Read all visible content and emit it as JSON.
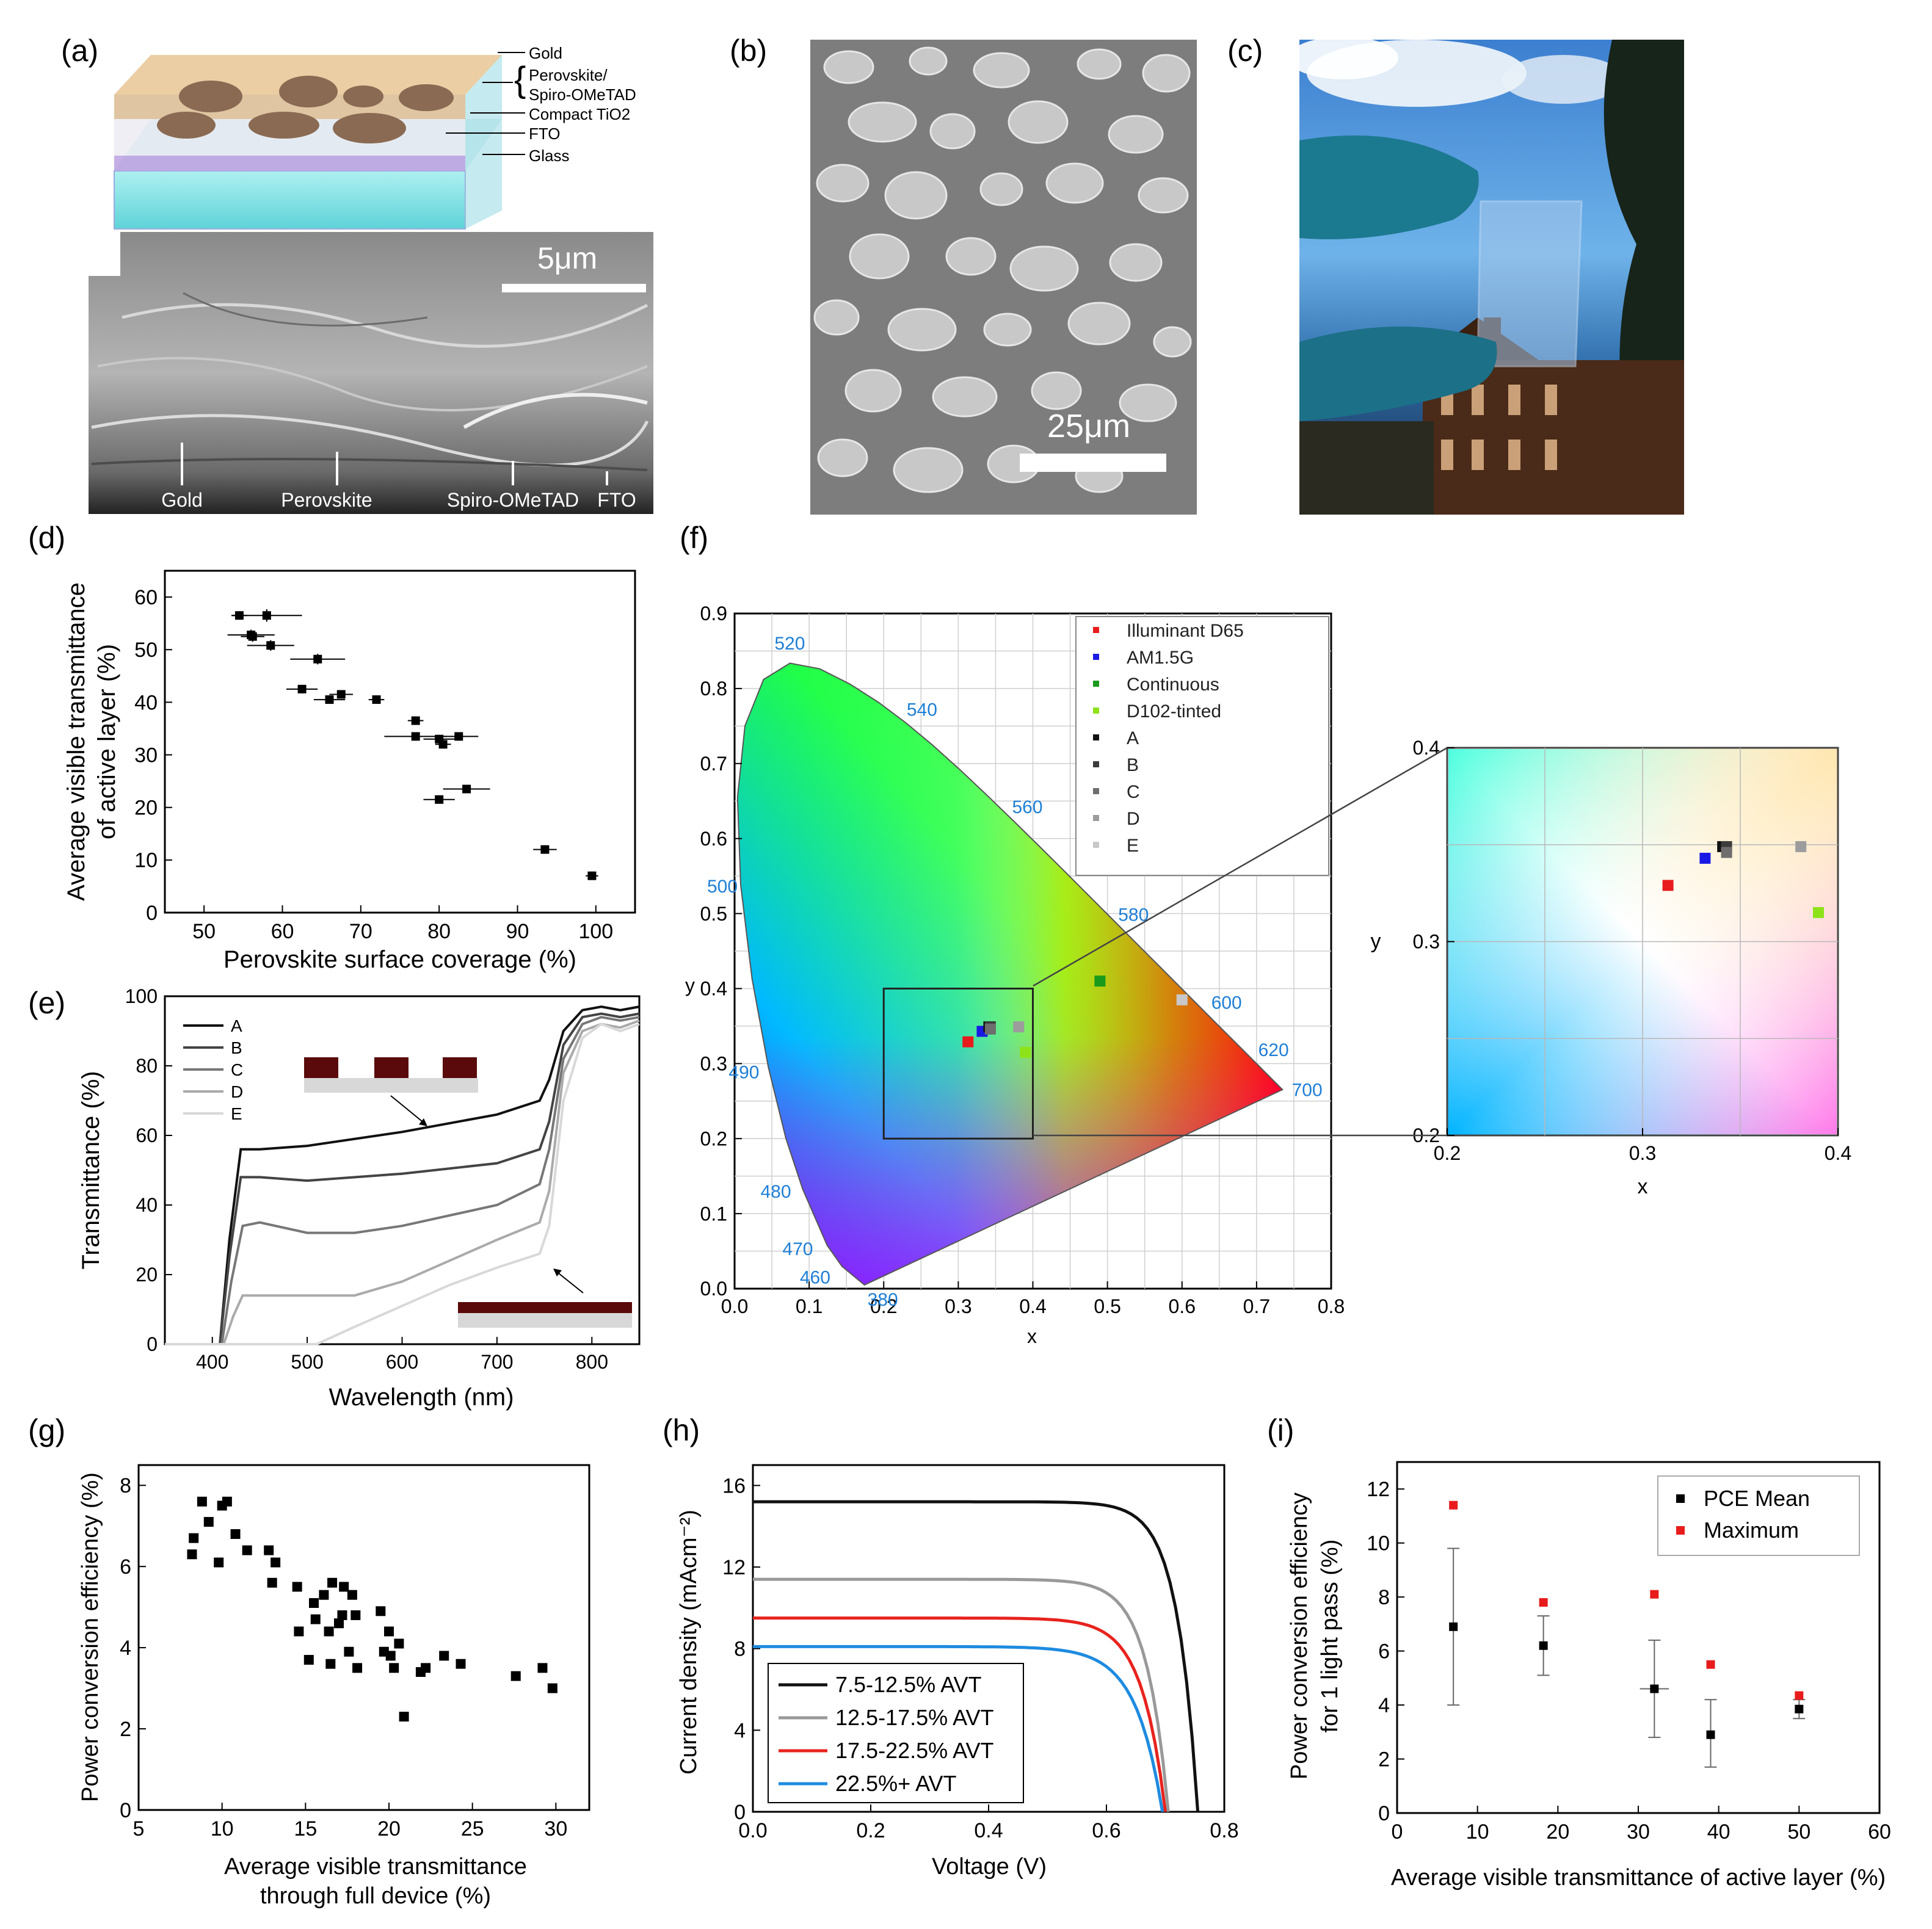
{
  "panels": {
    "a": {
      "label": "(a)",
      "layers": [
        "Gold",
        "Perovskite/",
        "Spiro-OMeTAD",
        "Compact TiO2",
        "FTO",
        "Glass"
      ],
      "scale_bar": "5μm",
      "sem_labels": [
        "Gold",
        "Perovskite",
        "Spiro-OMeTAD",
        "FTO"
      ]
    },
    "b": {
      "label": "(b)",
      "scale_bar": "25μm"
    },
    "c": {
      "label": "(c)"
    },
    "d": {
      "label": "(d)"
    },
    "e": {
      "label": "(e)"
    },
    "f": {
      "label": "(f)",
      "wavelength_labels": [
        "520",
        "540",
        "560",
        "580",
        "600",
        "620",
        "700",
        "500",
        "490",
        "480",
        "470",
        "460",
        "380"
      ]
    },
    "g": {
      "label": "(g)"
    },
    "h": {
      "label": "(h)"
    },
    "i": {
      "label": "(i)"
    }
  },
  "colors": {
    "red": "#e81c1c",
    "blue": "#1a1ae6",
    "green": "#1a9a1a",
    "lime": "#8ee21a",
    "gray_a": "#111111",
    "gray_b": "#3c3c3c",
    "gray_c": "#6e6e6e",
    "gray_d": "#9c9c9c",
    "gray_e": "#c8c8c8",
    "wavelength_text": "#1e7fd6",
    "maroon": "#5a0a0a"
  },
  "chart_data": [
    {
      "id": "d",
      "type": "scatter",
      "xlabel": "Perovskite surface coverage (%)",
      "ylabel": [
        "Average visible transmittance",
        "of active layer (%)"
      ],
      "xlim": [
        45,
        105
      ],
      "ylim": [
        0,
        65
      ],
      "xticks": [
        50,
        60,
        70,
        80,
        90,
        100
      ],
      "xtick_labels": [
        "50",
        "60",
        "70",
        "80",
        "90",
        "100"
      ],
      "yticks": [
        0,
        10,
        20,
        30,
        40,
        50,
        60
      ],
      "ytick_labels": [
        "0",
        "10",
        "20",
        "30",
        "40",
        "50",
        "60"
      ],
      "points": [
        {
          "x": 54.5,
          "y": 56.5,
          "xerr": 1.0,
          "yerr": 0.8
        },
        {
          "x": 58.0,
          "y": 56.5,
          "xerr": 4.5,
          "yerr": 1.2
        },
        {
          "x": 56.0,
          "y": 52.8,
          "xerr": 3.0,
          "yerr": 1.0
        },
        {
          "x": 56.2,
          "y": 52.5,
          "xerr": 1.5,
          "yerr": 1.0
        },
        {
          "x": 58.5,
          "y": 50.8,
          "xerr": 3.0,
          "yerr": 1.0
        },
        {
          "x": 64.5,
          "y": 48.2,
          "xerr": 3.5,
          "yerr": 1.0
        },
        {
          "x": 62.5,
          "y": 42.5,
          "xerr": 2.0,
          "yerr": 0.8
        },
        {
          "x": 66.0,
          "y": 40.5,
          "xerr": 2.0,
          "yerr": 0.8
        },
        {
          "x": 67.5,
          "y": 41.5,
          "xerr": 1.5,
          "yerr": 0.8
        },
        {
          "x": 72.0,
          "y": 40.5,
          "xerr": 1.0,
          "yerr": 0.8
        },
        {
          "x": 77.0,
          "y": 36.5,
          "xerr": 1.0,
          "yerr": 0.8
        },
        {
          "x": 77.0,
          "y": 33.5,
          "xerr": 4.0,
          "yerr": 0.8
        },
        {
          "x": 80.0,
          "y": 33.0,
          "xerr": 2.0,
          "yerr": 0.8
        },
        {
          "x": 80.5,
          "y": 32.0,
          "xerr": 1.0,
          "yerr": 0.8
        },
        {
          "x": 82.5,
          "y": 33.5,
          "xerr": 2.5,
          "yerr": 0.8
        },
        {
          "x": 83.5,
          "y": 23.5,
          "xerr": 3.0,
          "yerr": 0.8
        },
        {
          "x": 80.0,
          "y": 21.5,
          "xerr": 2.0,
          "yerr": 0.8
        },
        {
          "x": 93.5,
          "y": 12.0,
          "xerr": 1.5,
          "yerr": 0.8
        },
        {
          "x": 99.5,
          "y": 7.0,
          "xerr": 0.8,
          "yerr": 0.8
        }
      ]
    },
    {
      "id": "e",
      "type": "line",
      "xlabel": "Wavelength (nm)",
      "ylabel": "Transmittance (%)",
      "xlim": [
        350,
        850
      ],
      "ylim": [
        0,
        100
      ],
      "xticks": [
        400,
        500,
        600,
        700,
        800
      ],
      "xtick_labels": [
        "400",
        "500",
        "600",
        "700",
        "800"
      ],
      "yticks": [
        0,
        20,
        40,
        60,
        80,
        100
      ],
      "ytick_labels": [
        "0",
        "20",
        "40",
        "60",
        "80",
        "100"
      ],
      "series": [
        {
          "name": "A",
          "color": "#111111",
          "x": [
            350,
            408,
            418,
            430,
            450,
            500,
            600,
            700,
            745,
            755,
            770,
            790,
            810,
            830,
            850
          ],
          "y": [
            0,
            0,
            30,
            56,
            56,
            57,
            61,
            66,
            70,
            76,
            90,
            96,
            97,
            96,
            97
          ]
        },
        {
          "name": "B",
          "color": "#444444",
          "x": [
            350,
            408,
            418,
            430,
            450,
            500,
            600,
            700,
            745,
            755,
            770,
            790,
            810,
            830,
            850
          ],
          "y": [
            0,
            0,
            25,
            48,
            48,
            47,
            49,
            52,
            56,
            64,
            86,
            94,
            95,
            94,
            95
          ]
        },
        {
          "name": "C",
          "color": "#777777",
          "x": [
            350,
            410,
            420,
            432,
            450,
            500,
            550,
            600,
            700,
            745,
            755,
            770,
            790,
            810,
            830,
            850
          ],
          "y": [
            0,
            0,
            18,
            34,
            35,
            32,
            32,
            34,
            40,
            46,
            56,
            82,
            92,
            94,
            93,
            94
          ]
        },
        {
          "name": "D",
          "color": "#aaaaaa",
          "x": [
            350,
            412,
            422,
            432,
            450,
            500,
            550,
            600,
            650,
            700,
            745,
            755,
            770,
            790,
            810,
            830,
            850
          ],
          "y": [
            0,
            0,
            8,
            14,
            14,
            14,
            14,
            18,
            24,
            30,
            35,
            44,
            78,
            90,
            92,
            91,
            93
          ]
        },
        {
          "name": "E",
          "color": "#d8d8d8",
          "x": [
            350,
            510,
            550,
            600,
            650,
            700,
            745,
            755,
            770,
            790,
            810,
            830,
            850
          ],
          "y": [
            0,
            0,
            5,
            11,
            17,
            22,
            26,
            34,
            70,
            88,
            92,
            90,
            92
          ]
        }
      ]
    },
    {
      "id": "f",
      "type": "scatter",
      "xlabel": "x",
      "ylabel": "y",
      "xlim": [
        0,
        0.8
      ],
      "ylim": [
        0,
        0.9
      ],
      "xticks": [
        0.0,
        0.1,
        0.2,
        0.3,
        0.4,
        0.5,
        0.6,
        0.7,
        0.8
      ],
      "xtick_labels": [
        "0.0",
        "0.1",
        "0.2",
        "0.3",
        "0.4",
        "0.5",
        "0.6",
        "0.7",
        "0.8"
      ],
      "yticks": [
        0.0,
        0.1,
        0.2,
        0.3,
        0.4,
        0.5,
        0.6,
        0.7,
        0.8,
        0.9
      ],
      "ytick_labels": [
        "0.0",
        "0.1",
        "0.2",
        "0.3",
        "0.4",
        "0.5",
        "0.6",
        "0.7",
        "0.8",
        "0.9"
      ],
      "series": [
        {
          "name": "Illuminant D65",
          "color": "#e81c1c",
          "x": 0.313,
          "y": 0.329
        },
        {
          "name": "AM1.5G",
          "color": "#1a1ae6",
          "x": 0.332,
          "y": 0.343
        },
        {
          "name": "Continuous",
          "color": "#1a9a1a",
          "x": 0.49,
          "y": 0.41
        },
        {
          "name": "D102-tinted",
          "color": "#8ee21a",
          "x": 0.39,
          "y": 0.315
        },
        {
          "name": "A",
          "color": "#111111",
          "x": 0.341,
          "y": 0.349
        },
        {
          "name": "B",
          "color": "#3c3c3c",
          "x": 0.343,
          "y": 0.349
        },
        {
          "name": "C",
          "color": "#6e6e6e",
          "x": 0.343,
          "y": 0.346
        },
        {
          "name": "D",
          "color": "#9c9c9c",
          "x": 0.381,
          "y": 0.349
        },
        {
          "name": "E",
          "color": "#c8c8c8",
          "x": 0.6,
          "y": 0.385
        }
      ],
      "inset": {
        "xlabel": "x",
        "ylabel": "y",
        "xlim": [
          0.2,
          0.4
        ],
        "ylim": [
          0.2,
          0.4
        ],
        "xticks": [
          0.2,
          0.3,
          0.4
        ],
        "xtick_labels": [
          "0.2",
          "0.3",
          "0.4"
        ],
        "yticks": [
          0.2,
          0.3,
          0.4
        ],
        "ytick_labels": [
          "0.2",
          "0.3",
          "0.4"
        ]
      }
    },
    {
      "id": "g",
      "type": "scatter",
      "xlabel": [
        "Average visible transmittance",
        "through full device (%)"
      ],
      "ylabel": "Power conversion efficiency (%)",
      "xlim": [
        5,
        32
      ],
      "ylim": [
        0,
        8.5
      ],
      "xticks": [
        5,
        10,
        15,
        20,
        25,
        30
      ],
      "xtick_labels": [
        "5",
        "10",
        "15",
        "20",
        "25",
        "30"
      ],
      "yticks": [
        0,
        2,
        4,
        6,
        8
      ],
      "ytick_labels": [
        "0",
        "2",
        "4",
        "6",
        "8"
      ],
      "points": [
        [
          8.2,
          6.3
        ],
        [
          8.3,
          6.7
        ],
        [
          8.8,
          7.6
        ],
        [
          9.2,
          7.1
        ],
        [
          9.8,
          6.1
        ],
        [
          10.0,
          7.5
        ],
        [
          10.3,
          7.6
        ],
        [
          10.8,
          6.8
        ],
        [
          11.5,
          6.4
        ],
        [
          12.8,
          6.4
        ],
        [
          13.0,
          5.6
        ],
        [
          13.2,
          6.1
        ],
        [
          14.5,
          5.5
        ],
        [
          14.6,
          4.4
        ],
        [
          15.2,
          3.7
        ],
        [
          15.5,
          5.1
        ],
        [
          15.6,
          4.7
        ],
        [
          16.1,
          5.3
        ],
        [
          16.4,
          4.4
        ],
        [
          16.5,
          3.6
        ],
        [
          16.6,
          5.6
        ],
        [
          17.0,
          4.6
        ],
        [
          17.2,
          4.8
        ],
        [
          17.3,
          5.5
        ],
        [
          17.6,
          3.9
        ],
        [
          17.8,
          5.3
        ],
        [
          18.0,
          4.8
        ],
        [
          18.1,
          3.5
        ],
        [
          19.5,
          4.9
        ],
        [
          19.7,
          3.9
        ],
        [
          20.0,
          4.4
        ],
        [
          20.1,
          3.8
        ],
        [
          20.3,
          3.5
        ],
        [
          20.6,
          4.1
        ],
        [
          20.9,
          2.3
        ],
        [
          21.9,
          3.4
        ],
        [
          22.2,
          3.5
        ],
        [
          23.3,
          3.8
        ],
        [
          24.3,
          3.6
        ],
        [
          27.6,
          3.3
        ],
        [
          29.2,
          3.5
        ],
        [
          29.8,
          3.0
        ]
      ]
    },
    {
      "id": "h",
      "type": "line",
      "xlabel": "Voltage (V)",
      "ylabel": "Current density (mAcm⁻²)",
      "xlim": [
        0,
        0.8
      ],
      "ylim": [
        0,
        17
      ],
      "xticks": [
        0.0,
        0.2,
        0.4,
        0.6,
        0.8
      ],
      "xtick_labels": [
        "0.0",
        "0.2",
        "0.4",
        "0.6",
        "0.8"
      ],
      "yticks": [
        0,
        4,
        8,
        12,
        16
      ],
      "ytick_labels": [
        "0",
        "4",
        "8",
        "12",
        "16"
      ],
      "series": [
        {
          "name": "7.5-12.5% AVT",
          "color": "#111111",
          "jsc": 15.2,
          "voc": 0.755,
          "k": 0.035
        },
        {
          "name": "12.5-17.5% AVT",
          "color": "#999999",
          "jsc": 11.4,
          "voc": 0.705,
          "k": 0.037
        },
        {
          "name": "17.5-22.5% AVT",
          "color": "#e8231e",
          "jsc": 9.5,
          "voc": 0.7,
          "k": 0.04
        },
        {
          "name": "22.5%+ AVT",
          "color": "#1e8be0",
          "jsc": 8.1,
          "voc": 0.695,
          "k": 0.045
        }
      ]
    },
    {
      "id": "i",
      "type": "scatter",
      "xlabel": "Average visible transmittance of active layer (%)",
      "ylabel": [
        "Power conversion efficiency",
        "for 1 light pass (%)"
      ],
      "xlim": [
        0,
        60
      ],
      "ylim": [
        0,
        13
      ],
      "xticks": [
        0,
        10,
        20,
        30,
        40,
        50,
        60
      ],
      "xtick_labels": [
        "0",
        "10",
        "20",
        "30",
        "40",
        "50",
        "60"
      ],
      "yticks": [
        0,
        2,
        4,
        6,
        8,
        10,
        12
      ],
      "ytick_labels": [
        "0",
        "2",
        "4",
        "6",
        "8",
        "10",
        "12"
      ],
      "series": [
        {
          "name": "PCE Mean",
          "color": "#000000",
          "points": [
            {
              "x": 7.0,
              "y": 6.9,
              "lo": 4.0,
              "hi": 9.8,
              "xerr": 0
            },
            {
              "x": 18.2,
              "y": 6.2,
              "lo": 5.1,
              "hi": 7.3,
              "xerr": 0
            },
            {
              "x": 32.0,
              "y": 4.6,
              "lo": 2.8,
              "hi": 6.4,
              "xerr": 1.8
            },
            {
              "x": 39.0,
              "y": 2.9,
              "lo": 1.7,
              "hi": 4.2,
              "xerr": 0
            },
            {
              "x": 50.0,
              "y": 3.85,
              "lo": 3.5,
              "hi": 4.2,
              "xerr": 0
            }
          ]
        },
        {
          "name": "Maximum",
          "color": "#e81c1c",
          "points": [
            {
              "x": 7.0,
              "y": 11.4
            },
            {
              "x": 18.2,
              "y": 7.8
            },
            {
              "x": 32.0,
              "y": 8.1
            },
            {
              "x": 39.0,
              "y": 5.5
            },
            {
              "x": 50.0,
              "y": 4.35
            }
          ]
        }
      ]
    }
  ]
}
